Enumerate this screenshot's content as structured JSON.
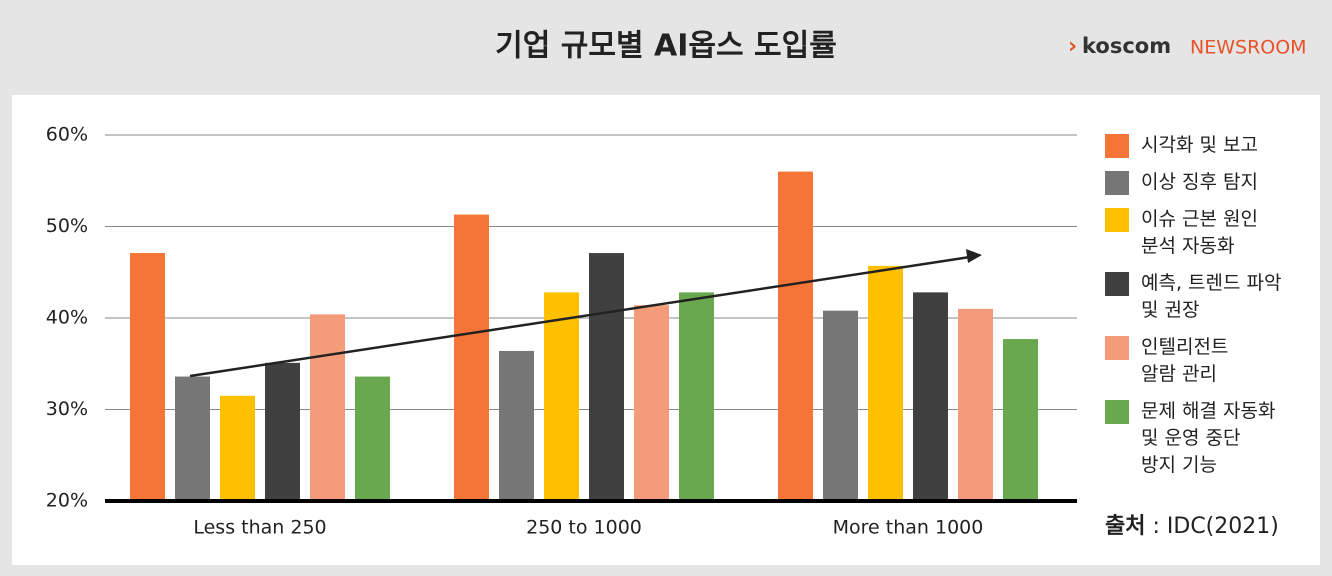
{
  "chart_data": {
    "type": "bar",
    "title": "기업 규모별 AI옵스 도입률",
    "brand": {
      "prefix": "koscom",
      "suffix": "NEWSROOM"
    },
    "source": {
      "label": "출처",
      "text": ": IDC(2021)"
    },
    "categories": [
      "Less than 250",
      "250 to 1000",
      "More than 1000"
    ],
    "series": [
      {
        "name": "시각화 및 보고",
        "color": "#f47535",
        "values": [
          47.1,
          51.3,
          56
        ]
      },
      {
        "name": "이상 징후 탐지",
        "color": "#767676",
        "values": [
          33.6,
          36.4,
          40.8
        ]
      },
      {
        "name": "이슈 근본 원인\n분석 자동화",
        "color": "#ffc000",
        "values": [
          31.5,
          42.8,
          45.7
        ]
      },
      {
        "name": "예측, 트렌드 파악\n및 권장",
        "color": "#404040",
        "values": [
          35.1,
          47.1,
          42.8
        ]
      },
      {
        "name": "인텔리전트\n알람 관리",
        "color": "#f49c7a",
        "values": [
          40.4,
          41.4,
          41
        ]
      },
      {
        "name": "문제 해결 자동화\n및 운영 중단\n방지 기능",
        "color": "#6aa84f",
        "values": [
          33.6,
          42.8,
          37.7
        ]
      }
    ],
    "ylim": [
      20,
      60
    ],
    "yticks": [
      {
        "value": 20,
        "label": "20%"
      },
      {
        "value": 30,
        "label": "30%"
      },
      {
        "value": 40,
        "label": "40%"
      },
      {
        "value": 50,
        "label": "50%"
      },
      {
        "value": 60,
        "label": "60%"
      }
    ],
    "grid": true
  }
}
